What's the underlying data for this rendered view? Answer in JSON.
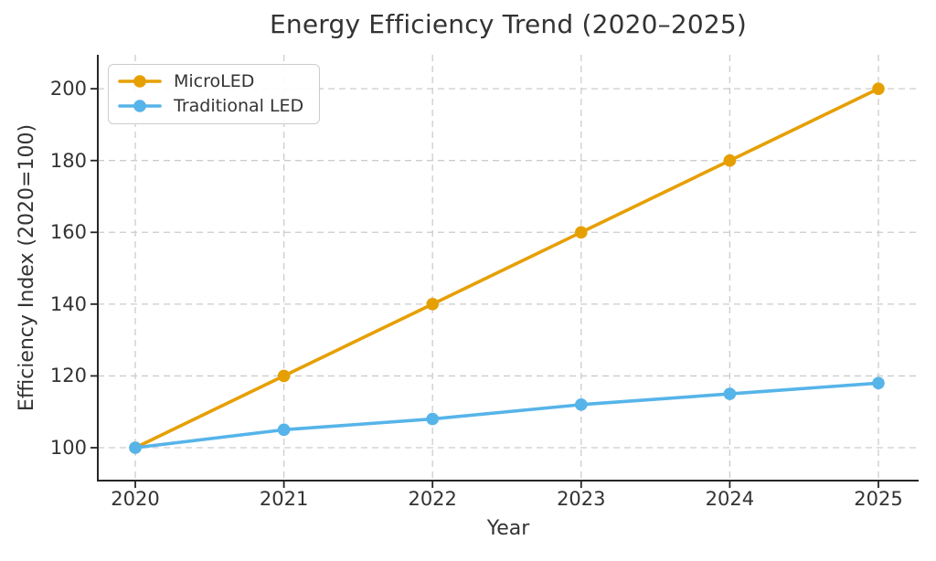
{
  "chart_data": {
    "type": "line",
    "title": "Energy Efficiency Trend (2020–2025)",
    "xlabel": "Year",
    "ylabel": "Efficiency Index (2020=100)",
    "x": [
      2020,
      2021,
      2022,
      2023,
      2024,
      2025
    ],
    "x_tick_labels": [
      "2020",
      "2021",
      "2022",
      "2023",
      "2024",
      "2025"
    ],
    "y_ticks": [
      100,
      120,
      140,
      160,
      180,
      200
    ],
    "y_tick_labels": [
      "100",
      "120",
      "140",
      "160",
      "180",
      "200"
    ],
    "ylim": [
      90,
      210
    ],
    "grid": true,
    "grid_style": "dashed",
    "legend_position": "upper-left",
    "series": [
      {
        "name": "MicroLED",
        "color": "#E69F00",
        "values": [
          100,
          120,
          140,
          160,
          180,
          200
        ]
      },
      {
        "name": "Traditional LED",
        "color": "#56B4E9",
        "values": [
          100,
          105,
          108,
          112,
          115,
          118
        ]
      }
    ],
    "colors": {
      "grid": "#cccccc",
      "axis": "#262626",
      "text": "#333333",
      "background": "#ffffff"
    }
  }
}
